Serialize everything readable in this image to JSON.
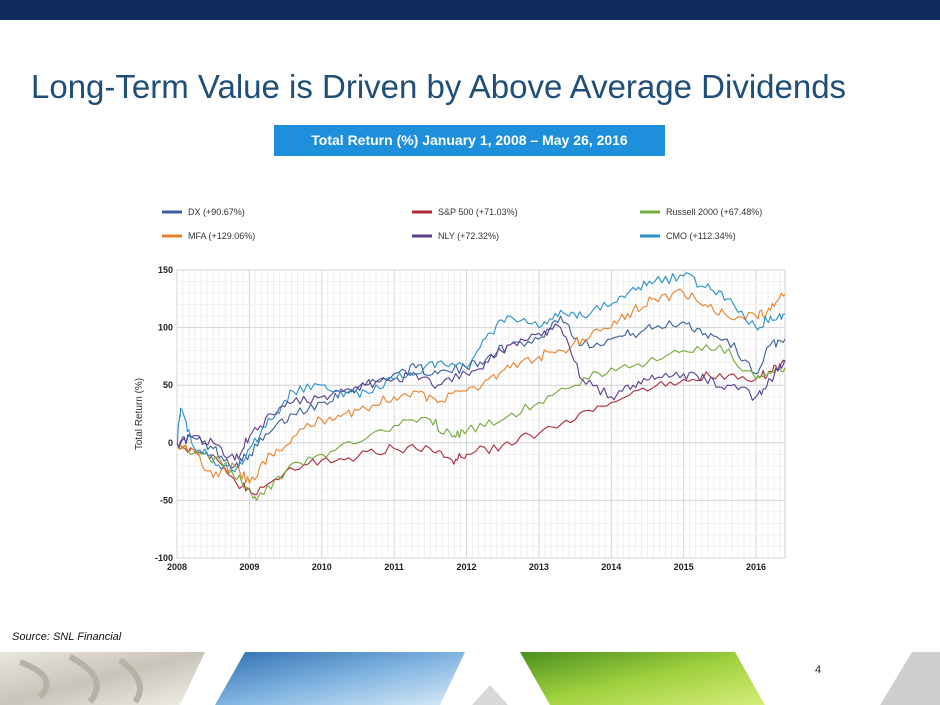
{
  "slide": {
    "title": "Long-Term Value is Driven by Above Average Dividends",
    "subtitle": "Total Return (%) January 1, 2008 – May 26, 2016",
    "source": "Source: SNL Financial",
    "page_number": "4"
  },
  "colors": {
    "top_bar": "#0f2c5c",
    "title": "#1f4e79",
    "subtitle_box": "#1d8fdb"
  },
  "chart_data": {
    "type": "line",
    "title": "",
    "xlabel": "",
    "ylabel": "Total Return (%)",
    "xlim": [
      2008,
      2016.4
    ],
    "ylim": [
      -100,
      150
    ],
    "x_ticks": [
      "2008",
      "2009",
      "2010",
      "2011",
      "2012",
      "2013",
      "2014",
      "2015",
      "2016"
    ],
    "y_ticks": [
      "150",
      "100",
      "50",
      "0",
      "-50",
      "-100"
    ],
    "grid": true,
    "legend_position": "top",
    "series": [
      {
        "name": "DX (+90.67%)",
        "color": "#3a5f9a",
        "x": [
          2008,
          2008.2,
          2008.5,
          2008.8,
          2009,
          2009.3,
          2009.6,
          2010,
          2010.3,
          2010.6,
          2011,
          2011.3,
          2011.6,
          2012,
          2012.3,
          2012.6,
          2013,
          2013.3,
          2013.6,
          2014,
          2014.3,
          2014.6,
          2015,
          2015.3,
          2015.6,
          2016,
          2016.2,
          2016.4
        ],
        "y": [
          0,
          5,
          -5,
          -20,
          -10,
          10,
          25,
          35,
          45,
          50,
          60,
          65,
          60,
          65,
          75,
          85,
          90,
          110,
          85,
          90,
          95,
          100,
          105,
          95,
          90,
          60,
          85,
          90
        ]
      },
      {
        "name": "S&P 500 (+71.03%)",
        "color": "#b02a3a",
        "x": [
          2008,
          2008.3,
          2008.6,
          2008.9,
          2009.1,
          2009.5,
          2010,
          2010.5,
          2011,
          2011.5,
          2011.8,
          2012,
          2012.5,
          2013,
          2013.5,
          2014,
          2014.5,
          2015,
          2015.5,
          2016,
          2016.2,
          2016.4
        ],
        "y": [
          0,
          -8,
          -18,
          -38,
          -45,
          -25,
          -15,
          -12,
          -5,
          -5,
          -15,
          -10,
          -2,
          8,
          20,
          35,
          45,
          55,
          60,
          55,
          62,
          70
        ]
      },
      {
        "name": "Russell 2000 (+67.48%)",
        "color": "#76a83b",
        "x": [
          2008,
          2008.3,
          2008.6,
          2008.9,
          2009.1,
          2009.5,
          2010,
          2010.5,
          2011,
          2011.5,
          2011.8,
          2012,
          2012.5,
          2013,
          2013.5,
          2014,
          2014.5,
          2015,
          2015.5,
          2016,
          2016.2,
          2016.4
        ],
        "y": [
          0,
          -10,
          -15,
          -35,
          -50,
          -25,
          -10,
          0,
          15,
          20,
          5,
          10,
          20,
          35,
          50,
          65,
          70,
          80,
          85,
          55,
          60,
          65
        ]
      },
      {
        "name": "MFA (+129.06%)",
        "color": "#e8822a",
        "x": [
          2008,
          2008.2,
          2008.5,
          2008.8,
          2009,
          2009.3,
          2009.6,
          2010,
          2010.3,
          2010.6,
          2011,
          2011.3,
          2011.6,
          2012,
          2012.3,
          2012.6,
          2013,
          2013.3,
          2013.6,
          2014,
          2014.3,
          2014.6,
          2015,
          2015.3,
          2015.6,
          2016,
          2016.2,
          2016.4
        ],
        "y": [
          0,
          -5,
          -30,
          -20,
          -35,
          -10,
          5,
          20,
          25,
          30,
          40,
          45,
          35,
          45,
          55,
          65,
          75,
          80,
          90,
          100,
          115,
          125,
          130,
          120,
          110,
          110,
          115,
          129
        ]
      },
      {
        "name": "NLY (+72.32%)",
        "color": "#5a3e8f",
        "x": [
          2008,
          2008.2,
          2008.5,
          2008.8,
          2009,
          2009.3,
          2009.6,
          2010,
          2010.3,
          2010.6,
          2011,
          2011.3,
          2011.6,
          2012,
          2012.3,
          2012.6,
          2013,
          2013.3,
          2013.6,
          2014,
          2014.3,
          2014.6,
          2015,
          2015.3,
          2015.6,
          2016,
          2016.2,
          2016.4
        ],
        "y": [
          0,
          5,
          0,
          -15,
          5,
          25,
          35,
          40,
          45,
          50,
          55,
          60,
          50,
          60,
          70,
          85,
          95,
          100,
          55,
          40,
          50,
          55,
          60,
          55,
          50,
          40,
          55,
          72
        ]
      },
      {
        "name": "CMO (+112.34%)",
        "color": "#2a8fc7",
        "x": [
          2008,
          2008.05,
          2008.2,
          2008.5,
          2008.8,
          2009,
          2009.3,
          2009.6,
          2010,
          2010.3,
          2010.6,
          2011,
          2011.3,
          2011.6,
          2012,
          2012.3,
          2012.6,
          2013,
          2013.3,
          2013.6,
          2014,
          2014.3,
          2014.6,
          2015,
          2015.3,
          2015.6,
          2016,
          2016.2,
          2016.4
        ],
        "y": [
          0,
          30,
          0,
          -15,
          -25,
          -5,
          20,
          45,
          50,
          40,
          45,
          55,
          60,
          70,
          65,
          95,
          110,
          100,
          115,
          110,
          120,
          135,
          140,
          145,
          135,
          125,
          100,
          110,
          112
        ]
      }
    ]
  }
}
